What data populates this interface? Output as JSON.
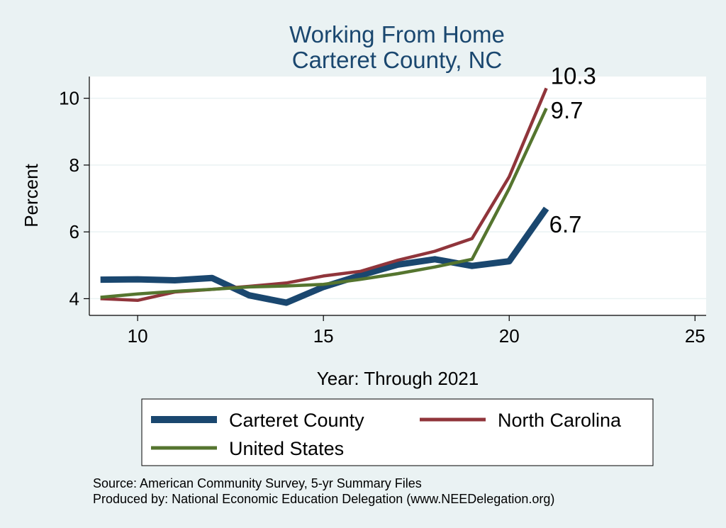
{
  "chart_data": {
    "type": "line",
    "title": [
      "Working From Home",
      "Carteret County, NC"
    ],
    "xlabel": "Year: Through 2021",
    "ylabel": "Percent",
    "xlim": [
      8.7,
      25.3
    ],
    "ylim": [
      3.5,
      10.65
    ],
    "xticks": [
      10,
      15,
      20,
      25
    ],
    "yticks": [
      4,
      6,
      8,
      10
    ],
    "grid": true,
    "legend_position": "bottom",
    "series": [
      {
        "name": "Carteret County",
        "color": "#1a476f",
        "x": [
          9,
          10,
          11,
          12,
          13,
          14,
          15,
          16,
          17,
          18,
          19,
          20,
          21
        ],
        "values": [
          4.57,
          4.58,
          4.55,
          4.62,
          4.1,
          3.88,
          4.35,
          4.7,
          5.02,
          5.18,
          4.98,
          5.12,
          6.7
        ],
        "end_label": "6.7"
      },
      {
        "name": "North Carolina",
        "color": "#90353b",
        "x": [
          9,
          10,
          11,
          12,
          13,
          14,
          15,
          16,
          17,
          18,
          19,
          20,
          21
        ],
        "values": [
          4.0,
          3.95,
          4.2,
          4.28,
          4.37,
          4.47,
          4.68,
          4.82,
          5.15,
          5.42,
          5.8,
          7.65,
          10.3
        ],
        "end_label": "10.3"
      },
      {
        "name": "United States",
        "color": "#55752f",
        "x": [
          9,
          10,
          11,
          12,
          13,
          14,
          15,
          16,
          17,
          18,
          19,
          20,
          21
        ],
        "values": [
          4.04,
          4.14,
          4.22,
          4.28,
          4.35,
          4.38,
          4.43,
          4.58,
          4.75,
          4.95,
          5.18,
          7.3,
          9.7
        ],
        "end_label": "9.7"
      }
    ],
    "notes": [
      "Source: American Community Survey, 5-yr Summary Files",
      "Produced by: National Economic Education Delegation (www.NEEDelegation.org)"
    ]
  }
}
